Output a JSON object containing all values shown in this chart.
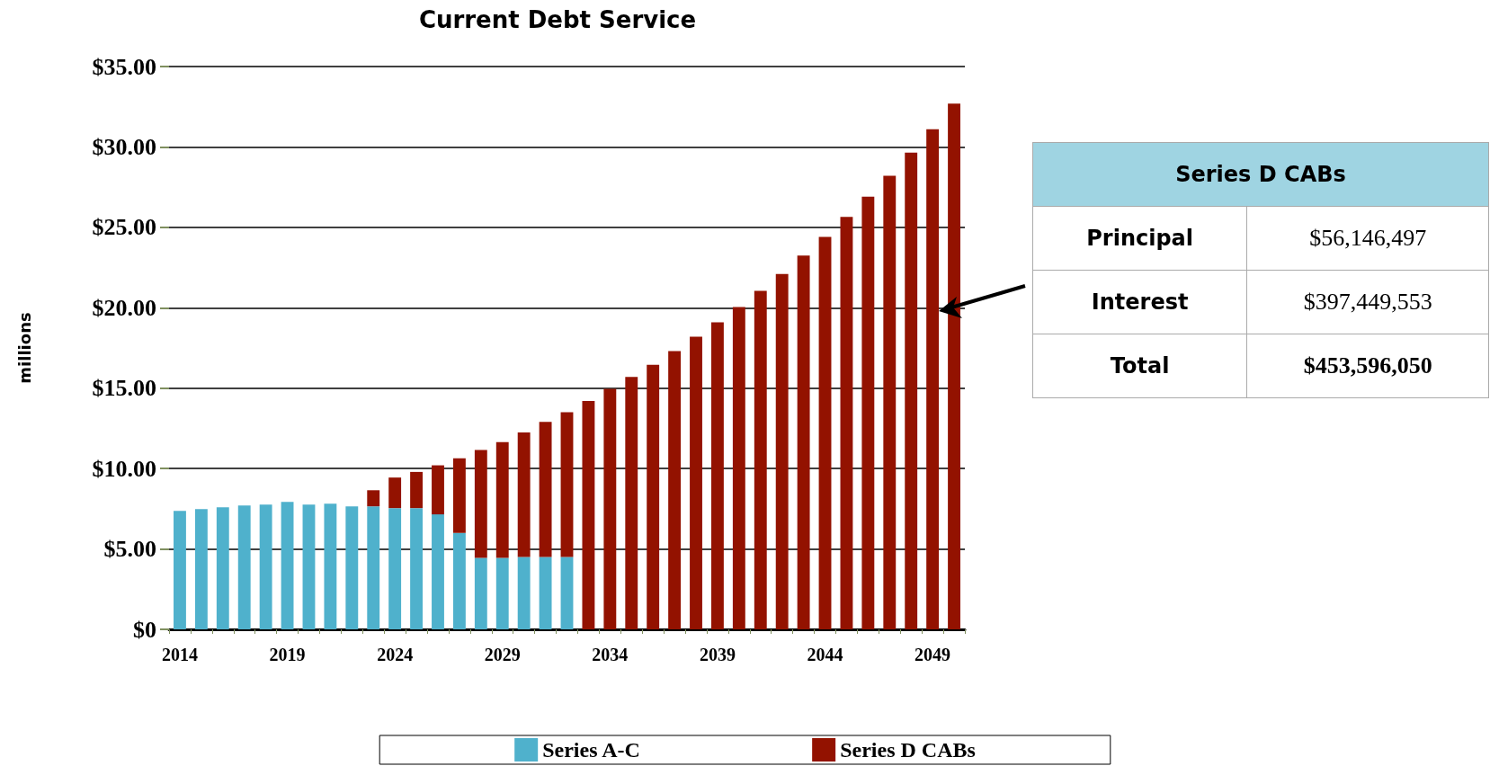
{
  "chart_data": [
    {
      "type": "bar",
      "title": "Current Debt Service",
      "ylabel": "millions",
      "stacked": true,
      "categories": [
        "2014",
        null,
        null,
        null,
        null,
        "2019",
        null,
        null,
        null,
        null,
        "2024",
        null,
        null,
        null,
        null,
        "2029",
        null,
        null,
        null,
        null,
        "2034",
        null,
        null,
        null,
        null,
        "2039",
        null,
        null,
        null,
        null,
        "2044",
        null,
        null,
        null,
        null,
        "2049",
        null
      ],
      "series": [
        {
          "name": "Series A-C",
          "color": "#4fb1cc",
          "values": [
            7.37,
            7.48,
            7.59,
            7.7,
            7.76,
            7.92,
            7.76,
            7.81,
            7.65,
            7.65,
            7.54,
            7.54,
            7.15,
            5.99,
            4.45,
            4.45,
            4.5,
            4.5,
            4.5,
            null,
            null,
            null,
            null,
            null,
            null,
            null,
            null,
            null,
            null,
            null,
            null,
            null,
            null,
            null,
            null,
            null,
            null
          ]
        },
        {
          "name": "Series D CABs",
          "color": "#931200",
          "values": [
            null,
            null,
            null,
            null,
            null,
            null,
            null,
            null,
            null,
            1.0,
            1.9,
            2.25,
            3.05,
            4.65,
            6.7,
            7.2,
            7.75,
            8.4,
            9.0,
            14.2,
            14.95,
            15.7,
            16.45,
            17.3,
            18.2,
            19.1,
            20.05,
            21.05,
            22.1,
            23.25,
            24.4,
            25.65,
            26.9,
            28.2,
            29.65,
            31.1,
            32.7
          ]
        }
      ],
      "ylim": [
        0,
        35
      ],
      "yticks": [
        {
          "value": 0,
          "label": "$0"
        },
        {
          "value": 5,
          "label": "$5.00"
        },
        {
          "value": 10,
          "label": "$10.00"
        },
        {
          "value": 15,
          "label": "$15.00"
        },
        {
          "value": 20,
          "label": "$20.00"
        },
        {
          "value": 25,
          "label": "$25.00"
        },
        {
          "value": 30,
          "label": "$30.00"
        },
        {
          "value": 35,
          "label": "$35.00"
        }
      ],
      "grid": "y",
      "legend": "bottom"
    },
    {
      "type": "other",
      "title": "Series D CABs",
      "annotations": [
        "Principal",
        "$56,146,497",
        "Interest",
        "$397,449,553",
        "Total",
        "$453,596,050"
      ]
    }
  ]
}
